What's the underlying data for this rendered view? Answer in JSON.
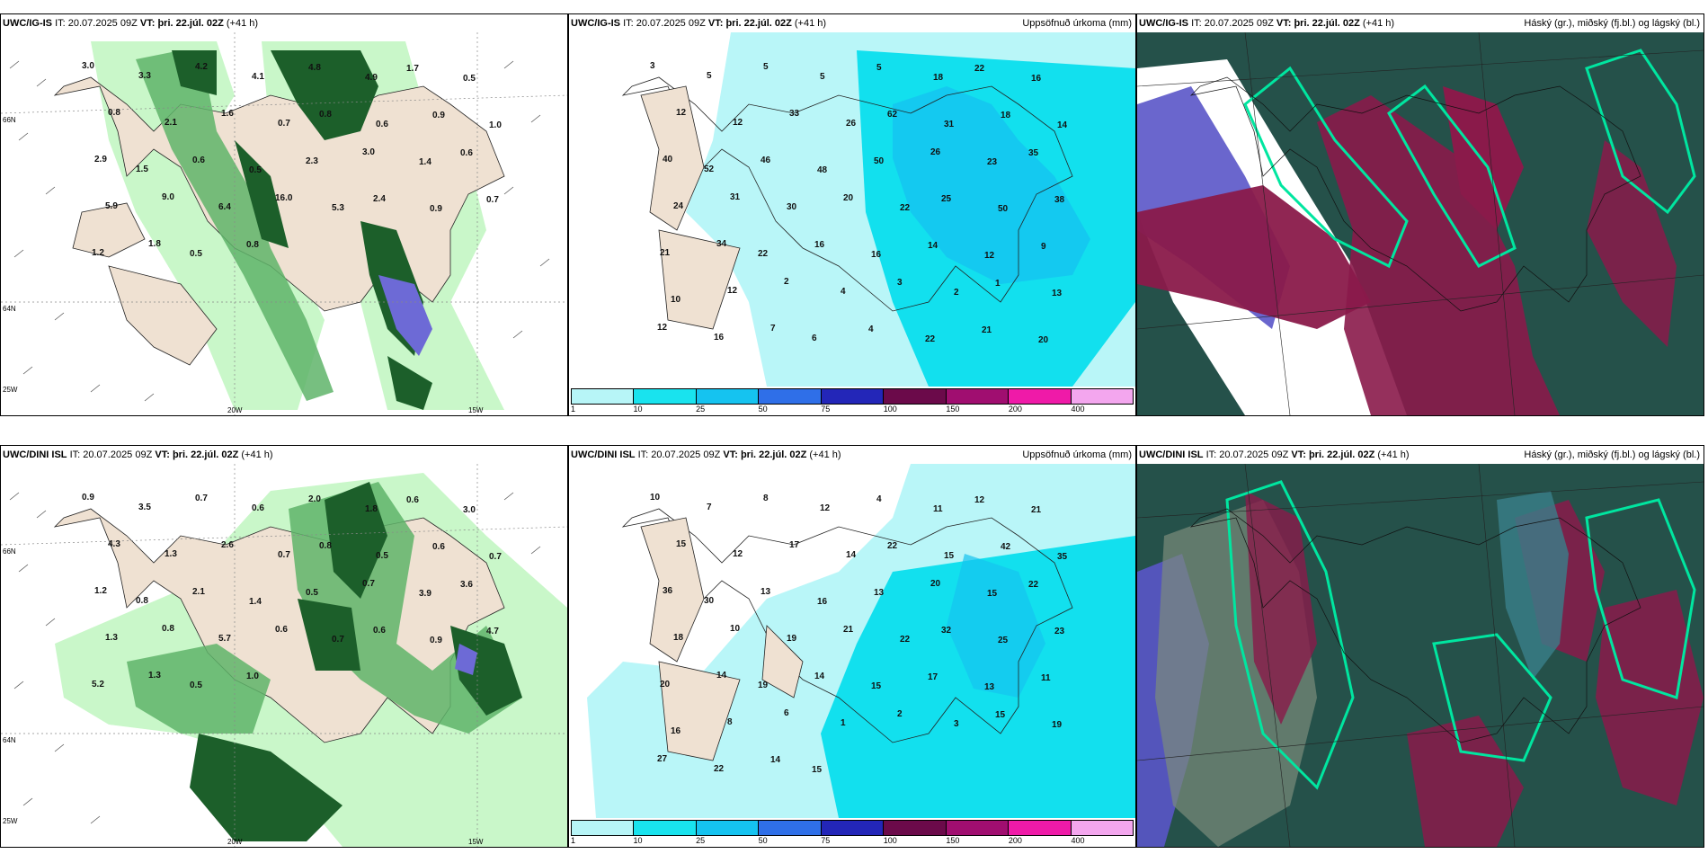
{
  "panels": [
    {
      "id": "p1",
      "model": "UWC/IG-IS",
      "it_label": "IT:",
      "it_value": "20.07.2025 09Z",
      "vt_label": "VT:",
      "vt_value": "þri. 22.júl. 02Z",
      "lead": "(+41 h)",
      "right_title": "",
      "axis": {
        "left_top": "66N",
        "left_bottom": "25W",
        "mid_lat": "64N",
        "bottom_left": "20W",
        "bottom_right": "15W"
      },
      "values": [
        "3.0",
        "3.3",
        "4.2",
        "4.1",
        "4.8",
        "4.9",
        "1.7",
        "0.5",
        "0.8",
        "2.1",
        "1.6",
        "0.7",
        "0.8",
        "0.6",
        "0.9",
        "1.0",
        "2.9",
        "1.5",
        "0.6",
        "0.5",
        "2.3",
        "3.0",
        "1.4",
        "0.6",
        "5.9",
        "9.0",
        "6.4",
        "16.0",
        "5.3",
        "2.4",
        "0.9",
        "0.7",
        "1.2",
        "1.8",
        "0.5",
        "0.8"
      ]
    },
    {
      "id": "p2",
      "model": "UWC/IG-IS",
      "it_label": "IT:",
      "it_value": "20.07.2025 09Z",
      "vt_label": "VT:",
      "vt_value": "þri. 22.júl. 02Z",
      "lead": "(+41 h)",
      "right_title": "Uppsöfnuð úrkoma (mm)",
      "values": [
        "3",
        "5",
        "5",
        "5",
        "5",
        "18",
        "22",
        "16",
        "12",
        "12",
        "33",
        "26",
        "62",
        "31",
        "18",
        "14",
        "40",
        "52",
        "46",
        "48",
        "50",
        "26",
        "23",
        "35",
        "24",
        "31",
        "30",
        "20",
        "22",
        "25",
        "50",
        "38",
        "21",
        "34",
        "22",
        "16",
        "16",
        "14",
        "12",
        "9",
        "10",
        "12",
        "2",
        "4",
        "3",
        "2",
        "1",
        "13",
        "12",
        "16",
        "7",
        "6",
        "4",
        "22",
        "21",
        "20"
      ],
      "colorbar": {
        "labels": [
          "1",
          "10",
          "25",
          "50",
          "75",
          "100",
          "150",
          "200",
          "400"
        ],
        "colors": [
          "#b7f5f7",
          "#19e3ee",
          "#15c3f0",
          "#2f6fe8",
          "#2326b8",
          "#6b0a4a",
          "#a00e70",
          "#ef1aa8",
          "#f3a6ee"
        ]
      }
    },
    {
      "id": "p3",
      "model": "UWC/IG-IS",
      "it_label": "IT:",
      "it_value": "20.07.2025 09Z",
      "vt_label": "VT:",
      "vt_value": "þri. 22.júl. 02Z",
      "lead": "(+41 h)",
      "right_title": "Háský (gr.), miðský (fj.bl.) og lágský (bl.)"
    },
    {
      "id": "p4",
      "model": "UWC/DINI ISL",
      "it_label": "IT:",
      "it_value": "20.07.2025 09Z",
      "vt_label": "VT:",
      "vt_value": "þri. 22.júl. 02Z",
      "lead": "(+41 h)",
      "right_title": "",
      "axis": {
        "left_top": "66N",
        "left_bottom": "25W",
        "mid_lat": "64N",
        "bottom_left": "20W",
        "bottom_right": "15W"
      },
      "values": [
        "0.9",
        "3.5",
        "0.7",
        "0.6",
        "2.0",
        "1.8",
        "0.6",
        "3.0",
        "4.3",
        "1.3",
        "2.6",
        "0.7",
        "0.8",
        "0.5",
        "0.6",
        "0.7",
        "1.2",
        "0.8",
        "2.1",
        "1.4",
        "0.5",
        "0.7",
        "3.9",
        "3.6",
        "1.3",
        "0.8",
        "5.7",
        "0.6",
        "0.7",
        "0.6",
        "0.9",
        "4.7",
        "5.2",
        "1.3",
        "0.5",
        "1.0"
      ]
    },
    {
      "id": "p5",
      "model": "UWC/DINI ISL",
      "it_label": "IT:",
      "it_value": "20.07.2025 09Z",
      "vt_label": "VT:",
      "vt_value": "þri. 22.júl. 02Z",
      "lead": "(+41 h)",
      "right_title": "Uppsöfnuð úrkoma (mm)",
      "values": [
        "10",
        "7",
        "8",
        "12",
        "4",
        "11",
        "12",
        "21",
        "15",
        "12",
        "17",
        "14",
        "22",
        "15",
        "42",
        "35",
        "36",
        "30",
        "13",
        "16",
        "13",
        "20",
        "15",
        "22",
        "18",
        "10",
        "19",
        "21",
        "22",
        "32",
        "25",
        "23",
        "20",
        "14",
        "19",
        "14",
        "15",
        "17",
        "13",
        "11",
        "16",
        "8",
        "6",
        "1",
        "2",
        "3",
        "15",
        "19",
        "27",
        "22",
        "14",
        "15"
      ],
      "colorbar": {
        "labels": [
          "1",
          "10",
          "25",
          "50",
          "75",
          "100",
          "150",
          "200",
          "400"
        ],
        "colors": [
          "#b7f5f7",
          "#19e3ee",
          "#15c3f0",
          "#2f6fe8",
          "#2326b8",
          "#6b0a4a",
          "#a00e70",
          "#ef1aa8",
          "#f3a6ee"
        ]
      }
    },
    {
      "id": "p6",
      "model": "UWC/DINI ISL",
      "it_label": "IT:",
      "it_value": "20.07.2025 09Z",
      "vt_label": "VT:",
      "vt_value": "þri. 22.júl. 02Z",
      "lead": "(+41 h)",
      "right_title": "Háský (gr.), miðský (fj.bl.) og lágský (bl.)"
    }
  ],
  "colors": {
    "land": "#efe1d2",
    "precip_light": "#c9f7c9",
    "precip_mid": "#5fb46a",
    "precip_dark": "#1c5f2a",
    "sea_light": "#b9f6f8",
    "sea_cyan": "#12e0ee",
    "cloud_high": "#25514a",
    "cloud_mid": "#8a1a4a",
    "cloud_low": "#5a55c8"
  }
}
